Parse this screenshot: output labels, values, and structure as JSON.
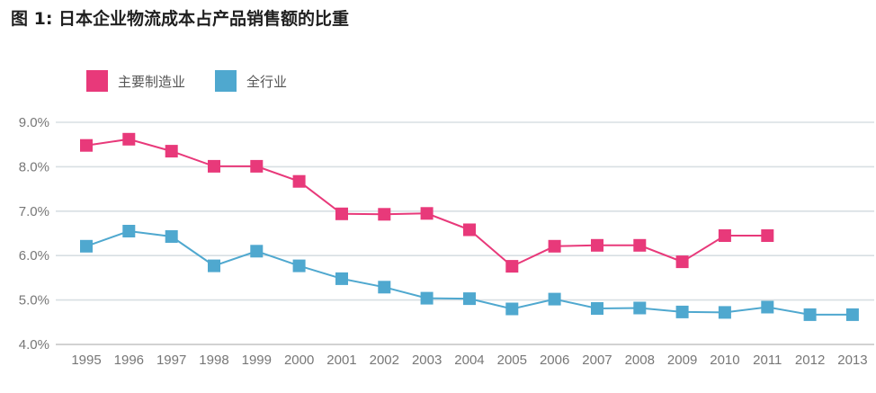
{
  "chart_data": {
    "type": "line",
    "title": "图 1: 日本企业物流成本占产品销售额的比重",
    "categories": [
      "1995",
      "1996",
      "1997",
      "1998",
      "1999",
      "2000",
      "2001",
      "2002",
      "2003",
      "2004",
      "2005",
      "2006",
      "2007",
      "2008",
      "2009",
      "2010",
      "2011",
      "2012",
      "2013"
    ],
    "series": [
      {
        "name": "主要制造业",
        "color": "#e8397a",
        "values": [
          8.48,
          8.62,
          8.35,
          8.01,
          8.01,
          7.67,
          6.94,
          6.93,
          6.95,
          6.58,
          5.76,
          6.21,
          6.23,
          6.23,
          5.86,
          6.45,
          6.45,
          null,
          null
        ]
      },
      {
        "name": "全行业",
        "color": "#4fa8cf",
        "values": [
          6.21,
          6.55,
          6.43,
          5.77,
          6.1,
          5.77,
          5.48,
          5.29,
          5.04,
          5.03,
          4.8,
          5.02,
          4.81,
          4.82,
          4.73,
          4.72,
          4.84,
          4.67,
          4.67
        ]
      }
    ],
    "yticks": [
      "4.0%",
      "5.0%",
      "6.0%",
      "7.0%",
      "8.0%",
      "9.0%"
    ],
    "ylim": [
      4.0,
      9.0
    ],
    "grid": true,
    "legend_position": "top-left"
  }
}
